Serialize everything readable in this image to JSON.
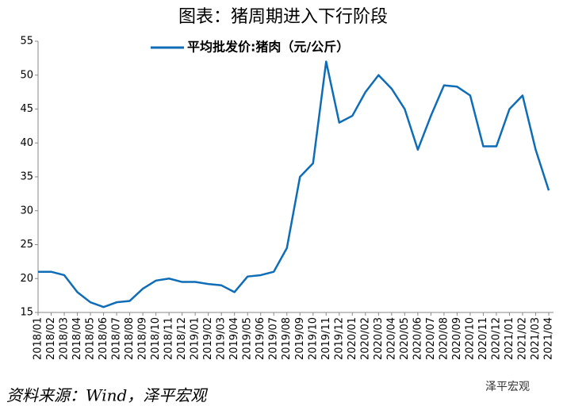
{
  "chart_data": {
    "type": "line",
    "title": "图表：猪周期进入下行阶段",
    "source": "资料来源：Wind，泽平宏观",
    "watermark": "泽平宏观",
    "categories": [
      "2018/01",
      "2018/02",
      "2018/03",
      "2018/04",
      "2018/05",
      "2018/06",
      "2018/07",
      "2018/08",
      "2018/09",
      "2018/10",
      "2018/11",
      "2018/12",
      "2019/01",
      "2019/02",
      "2019/03",
      "2019/04",
      "2019/05",
      "2019/06",
      "2019/07",
      "2019/08",
      "2019/09",
      "2019/10",
      "2019/11",
      "2019/12",
      "2020/01",
      "2020/02",
      "2020/03",
      "2020/04",
      "2020/05",
      "2020/06",
      "2020/07",
      "2020/08",
      "2020/09",
      "2020/10",
      "2020/11",
      "2020/12",
      "2021/01",
      "2021/02",
      "2021/03",
      "2021/04"
    ],
    "series": [
      {
        "name": "平均批发价:猪肉（元/公斤）",
        "color": "#0f6cb6",
        "values": [
          21,
          21,
          20.5,
          18,
          16.5,
          15.8,
          16.5,
          16.7,
          18.5,
          19.7,
          20,
          19.5,
          19.5,
          19.2,
          19,
          18,
          20.3,
          20.5,
          21,
          24.5,
          35,
          37,
          52,
          43,
          44,
          47.5,
          50,
          48,
          45,
          39,
          44,
          48.5,
          48.3,
          47,
          39.5,
          39.5,
          45,
          47,
          39,
          33
        ]
      }
    ],
    "ylim": [
      15,
      55
    ],
    "yticks": [
      15,
      20,
      25,
      30,
      35,
      40,
      45,
      50,
      55
    ]
  }
}
